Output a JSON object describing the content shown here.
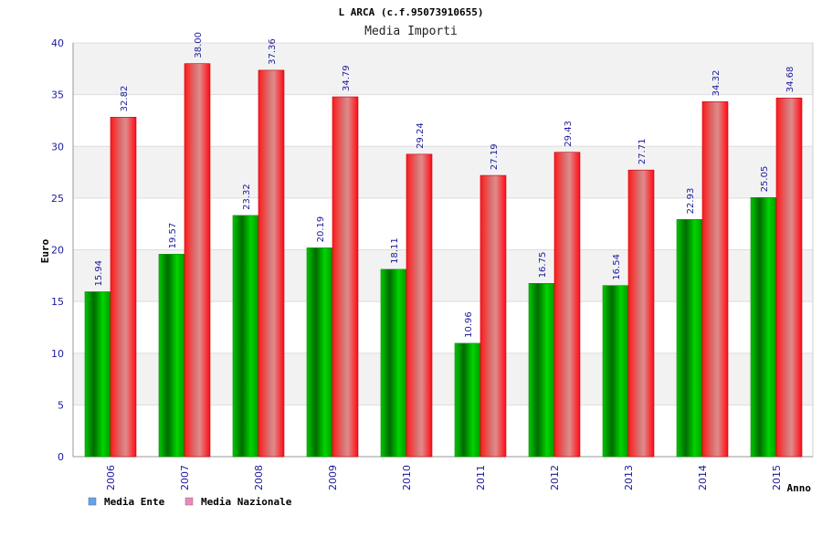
{
  "chart_data": {
    "type": "bar",
    "title": "L ARCA (c.f.95073910655)",
    "subtitle": "Media Importi",
    "xlabel": "Anno",
    "ylabel": "Euro",
    "ylim": [
      0,
      40
    ],
    "yticks": [
      0,
      5,
      10,
      15,
      20,
      25,
      30,
      35,
      40
    ],
    "categories": [
      "2006",
      "2007",
      "2008",
      "2009",
      "2010",
      "2011",
      "2012",
      "2013",
      "2014",
      "2015"
    ],
    "series": [
      {
        "name": "Media Ente",
        "color": "#00b000",
        "legend_color": "#6aa0e6",
        "values": [
          15.94,
          19.57,
          23.32,
          20.19,
          18.11,
          10.96,
          16.75,
          16.54,
          22.93,
          25.05
        ],
        "labels": [
          "15.94",
          "19.57",
          "23.32",
          "20.19",
          "18.11",
          "10.96",
          "16.75",
          "16.54",
          "22.93",
          "25.05"
        ]
      },
      {
        "name": "Media Nazionale",
        "color": "#e8101e",
        "legend_color": "#e88ab8",
        "values": [
          32.82,
          38.0,
          37.36,
          34.79,
          29.24,
          27.19,
          29.43,
          27.71,
          34.32,
          34.68
        ],
        "labels": [
          "32.82",
          "38.00",
          "37.36",
          "34.79",
          "29.24",
          "27.19",
          "29.43",
          "27.71",
          "34.32",
          "34.68"
        ]
      }
    ],
    "grid": true,
    "legend_position": "bottom-left"
  }
}
